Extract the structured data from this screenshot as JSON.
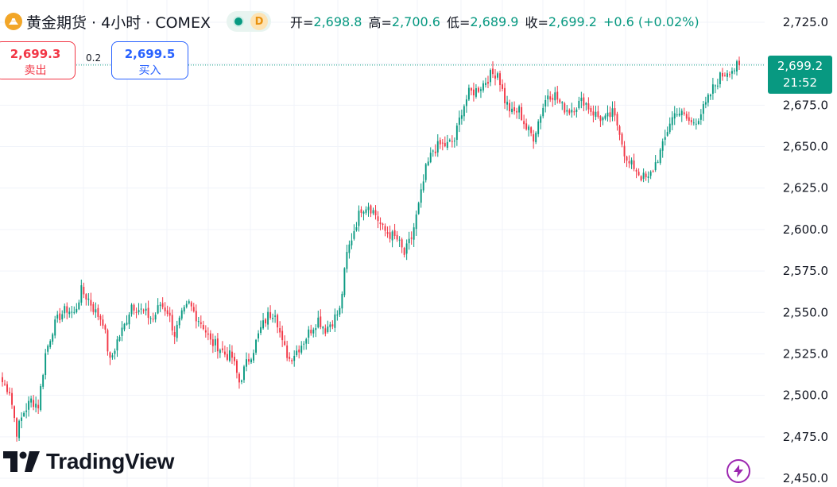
{
  "header": {
    "symbol_title": "黄金期货 · 4小时 · COMEX",
    "symbol_icon": "gold-bars-icon",
    "status_letter": "D",
    "ohlc": {
      "open_label": "开=",
      "open": "2,698.8",
      "high_label": "高=",
      "high": "2,700.6",
      "low_label": "低=",
      "low": "2,689.9",
      "close_label": "收=",
      "close": "2,699.2",
      "change": "+0.6 (+0.02%)"
    }
  },
  "trade": {
    "sell_price": "2,699.3",
    "sell_label": "卖出",
    "spread": "0.2",
    "buy_price": "2,699.5",
    "buy_label": "买入"
  },
  "last_price": {
    "price": "2,699.2",
    "countdown": "21:52"
  },
  "branding": {
    "logo_text": "TradingView"
  },
  "colors": {
    "up": "#089981",
    "down": "#f23645",
    "grid": "#f0f3fa",
    "last_line": "#089981",
    "accent_buy": "#2962ff",
    "bolt": "#9c27b0"
  },
  "chart_data": {
    "type": "candlestick",
    "title": "黄金期货 · 4小时 · COMEX",
    "y_ticks": [
      "2,725.0",
      "2,700.0",
      "2,675.0",
      "2,650.0",
      "2,625.0",
      "2,600.0",
      "2,575.0",
      "2,550.0",
      "2,525.0",
      "2,500.0",
      "2,475.0",
      "2,450.0"
    ],
    "ylim": [
      2450,
      2725
    ],
    "grid": true,
    "last_value": 2699.2,
    "close_path": [
      [
        0,
        2508
      ],
      [
        3,
        2503
      ],
      [
        6,
        2478
      ],
      [
        9,
        2490
      ],
      [
        12,
        2497
      ],
      [
        15,
        2494
      ],
      [
        18,
        2525
      ],
      [
        21,
        2540
      ],
      [
        24,
        2548
      ],
      [
        27,
        2552
      ],
      [
        30,
        2549
      ],
      [
        33,
        2563
      ],
      [
        36,
        2558
      ],
      [
        39,
        2550
      ],
      [
        42,
        2545
      ],
      [
        45,
        2520
      ],
      [
        48,
        2533
      ],
      [
        51,
        2542
      ],
      [
        54,
        2555
      ],
      [
        57,
        2552
      ],
      [
        60,
        2549
      ],
      [
        63,
        2546
      ],
      [
        66,
        2555
      ],
      [
        69,
        2551
      ],
      [
        72,
        2537
      ],
      [
        75,
        2548
      ],
      [
        78,
        2555
      ],
      [
        81,
        2548
      ],
      [
        84,
        2542
      ],
      [
        87,
        2532
      ],
      [
        90,
        2530
      ],
      [
        93,
        2525
      ],
      [
        96,
        2523
      ],
      [
        99,
        2508
      ],
      [
        102,
        2519
      ],
      [
        105,
        2528
      ],
      [
        108,
        2540
      ],
      [
        111,
        2548
      ],
      [
        114,
        2551
      ],
      [
        117,
        2531
      ],
      [
        120,
        2522
      ],
      [
        123,
        2527
      ],
      [
        126,
        2533
      ],
      [
        129,
        2540
      ],
      [
        132,
        2546
      ],
      [
        135,
        2540
      ],
      [
        138,
        2545
      ],
      [
        141,
        2551
      ],
      [
        144,
        2585
      ],
      [
        147,
        2600
      ],
      [
        150,
        2613
      ],
      [
        153,
        2615
      ],
      [
        156,
        2609
      ],
      [
        159,
        2600
      ],
      [
        162,
        2597
      ],
      [
        165,
        2594
      ],
      [
        168,
        2585
      ],
      [
        171,
        2595
      ],
      [
        174,
        2614
      ],
      [
        177,
        2636
      ],
      [
        180,
        2648
      ],
      [
        183,
        2651
      ],
      [
        186,
        2651
      ],
      [
        189,
        2654
      ],
      [
        192,
        2672
      ],
      [
        195,
        2682
      ],
      [
        198,
        2684
      ],
      [
        201,
        2688
      ],
      [
        204,
        2693
      ],
      [
        207,
        2695
      ],
      [
        210,
        2678
      ],
      [
        213,
        2670
      ],
      [
        216,
        2672
      ],
      [
        219,
        2661
      ],
      [
        222,
        2656
      ],
      [
        225,
        2670
      ],
      [
        228,
        2682
      ],
      [
        231,
        2681
      ],
      [
        234,
        2674
      ],
      [
        237,
        2672
      ],
      [
        240,
        2675
      ],
      [
        243,
        2678
      ],
      [
        246,
        2672
      ],
      [
        249,
        2668
      ],
      [
        252,
        2666
      ],
      [
        255,
        2670
      ],
      [
        258,
        2660
      ],
      [
        261,
        2640
      ],
      [
        264,
        2638
      ],
      [
        267,
        2632
      ],
      [
        270,
        2630
      ],
      [
        273,
        2640
      ],
      [
        276,
        2650
      ],
      [
        279,
        2665
      ],
      [
        282,
        2672
      ],
      [
        285,
        2668
      ],
      [
        288,
        2664
      ],
      [
        291,
        2668
      ],
      [
        294,
        2675
      ],
      [
        297,
        2685
      ],
      [
        300,
        2692
      ],
      [
        303,
        2696
      ],
      [
        306,
        2697
      ],
      [
        308,
        2699.2
      ]
    ]
  }
}
